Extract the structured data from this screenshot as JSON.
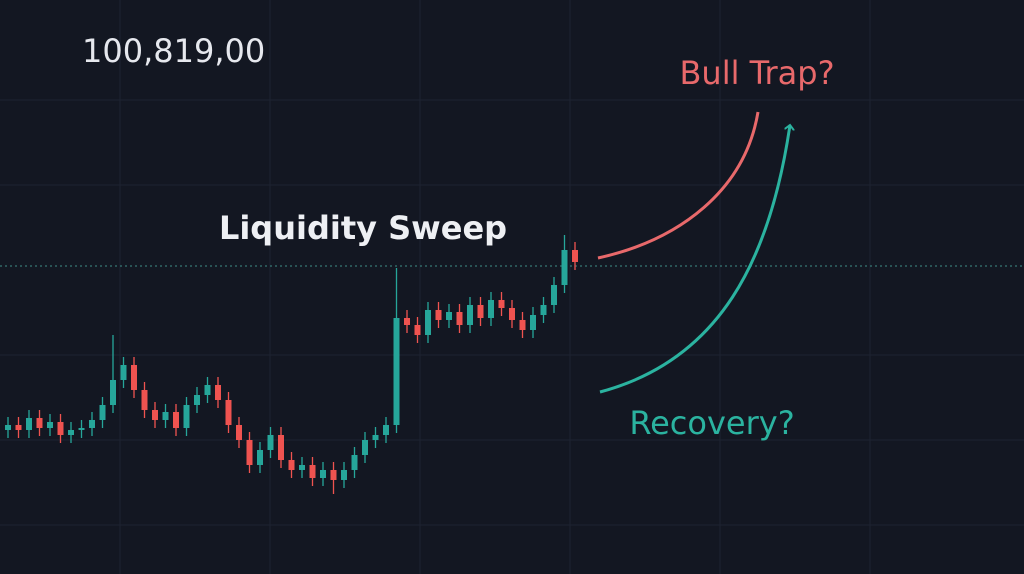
{
  "chart_data": {
    "type": "candlestick",
    "price": "100,819,00",
    "annotations": {
      "sweep": "Liquidity Sweep",
      "trap": "Bull Trap?",
      "recovery": "Recovery?"
    },
    "ylim": [
      0,
      574
    ],
    "up_color": "#26a69a",
    "down_color": "#ef5350",
    "open": [
      144,
      149,
      144,
      156,
      146,
      152,
      139,
      144,
      146,
      154,
      169,
      194,
      209,
      184,
      164,
      154,
      162,
      146,
      169,
      179,
      189,
      174,
      149,
      134,
      109,
      124,
      139,
      114,
      104,
      109,
      96,
      104,
      94,
      104,
      119,
      134,
      139,
      149,
      256,
      249,
      239,
      264,
      254,
      262,
      249,
      269,
      256,
      274,
      266,
      254,
      244,
      259,
      269,
      289,
      324
    ],
    "high": [
      157,
      157,
      164,
      164,
      160,
      160,
      152,
      154,
      162,
      177,
      239,
      217,
      217,
      192,
      172,
      170,
      170,
      177,
      187,
      197,
      197,
      182,
      157,
      142,
      132,
      147,
      147,
      122,
      117,
      117,
      112,
      112,
      112,
      127,
      142,
      147,
      157,
      306,
      264,
      257,
      272,
      272,
      270,
      270,
      277,
      277,
      282,
      282,
      274,
      262,
      267,
      277,
      297,
      339,
      332
    ],
    "low": [
      136,
      136,
      136,
      138,
      138,
      131,
      131,
      136,
      138,
      146,
      161,
      186,
      176,
      156,
      146,
      146,
      138,
      138,
      161,
      171,
      166,
      141,
      126,
      101,
      101,
      116,
      106,
      96,
      96,
      88,
      88,
      80,
      86,
      96,
      111,
      126,
      131,
      141,
      241,
      231,
      231,
      246,
      246,
      241,
      241,
      248,
      248,
      258,
      246,
      236,
      236,
      251,
      261,
      281,
      304
    ],
    "close": [
      149,
      144,
      156,
      146,
      152,
      139,
      144,
      146,
      154,
      169,
      194,
      209,
      184,
      164,
      154,
      162,
      146,
      169,
      179,
      189,
      174,
      149,
      134,
      109,
      124,
      139,
      114,
      104,
      109,
      96,
      104,
      94,
      104,
      119,
      134,
      139,
      149,
      256,
      249,
      239,
      264,
      254,
      262,
      249,
      269,
      256,
      274,
      266,
      254,
      244,
      259,
      269,
      289,
      324,
      312
    ]
  }
}
